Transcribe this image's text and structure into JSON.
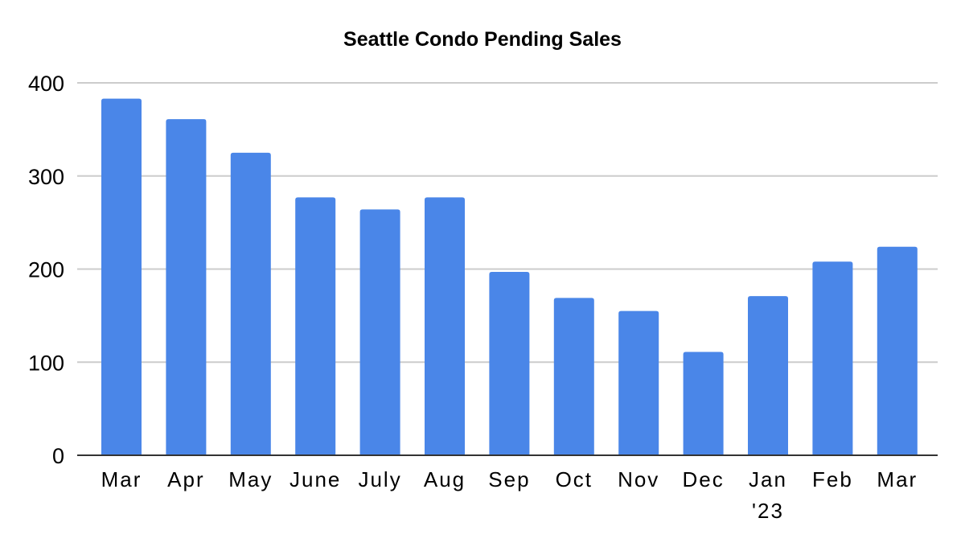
{
  "chart_data": {
    "type": "bar",
    "title": "Seattle Condo Pending Sales",
    "xlabel": "",
    "ylabel": "",
    "categories": [
      "Mar",
      "Apr",
      "May",
      "June",
      "July",
      "Aug",
      "Sep",
      "Oct",
      "Nov",
      "Dec",
      "Jan\n'23",
      "Feb",
      "Mar"
    ],
    "values": [
      383,
      361,
      325,
      277,
      264,
      277,
      197,
      169,
      155,
      111,
      171,
      208,
      224
    ],
    "ylim": [
      0,
      400
    ],
    "yticks": [
      "0",
      "100",
      "200",
      "300",
      "400"
    ],
    "grid": true,
    "legend": "none",
    "colors": {
      "bar": "#4a86e8",
      "grid": "#cccccc",
      "axis": "#333333"
    }
  }
}
